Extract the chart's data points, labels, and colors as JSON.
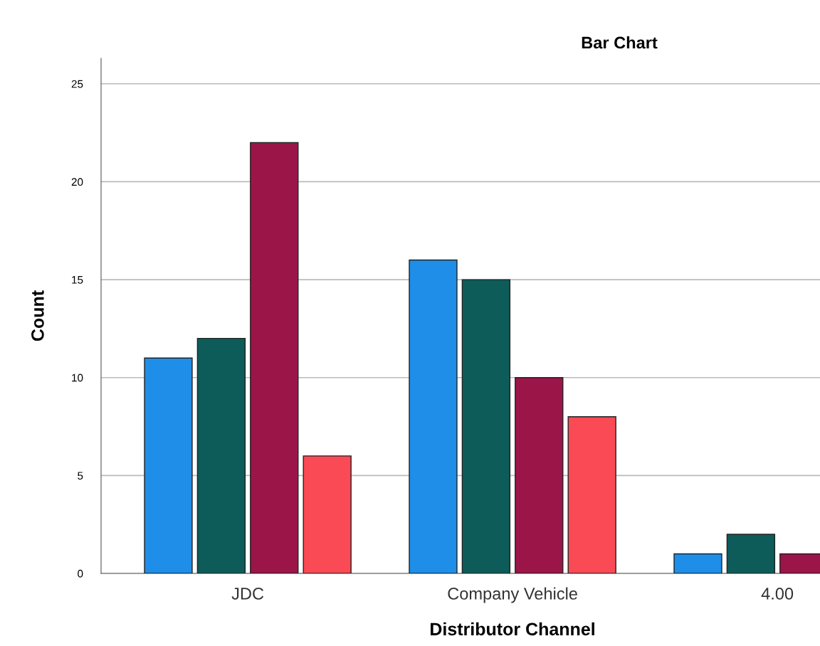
{
  "chart_data": {
    "type": "bar",
    "title": "Bar Chart",
    "xlabel": "Distributor Channel",
    "ylabel": "Count",
    "categories": [
      "JDC",
      "Company Vehicle",
      "4.00"
    ],
    "series": [
      {
        "color": "#1f8ee8",
        "values": [
          11,
          16,
          1
        ]
      },
      {
        "color": "#0d5c5a",
        "values": [
          12,
          15,
          2
        ]
      },
      {
        "color": "#9c1548",
        "values": [
          22,
          10,
          1
        ]
      },
      {
        "color": "#f94a55",
        "values": [
          6,
          8,
          null
        ]
      }
    ],
    "ylim": [
      0,
      26.3
    ],
    "yticks": [
      0,
      5,
      10,
      15,
      20,
      25
    ],
    "grid": "y"
  }
}
